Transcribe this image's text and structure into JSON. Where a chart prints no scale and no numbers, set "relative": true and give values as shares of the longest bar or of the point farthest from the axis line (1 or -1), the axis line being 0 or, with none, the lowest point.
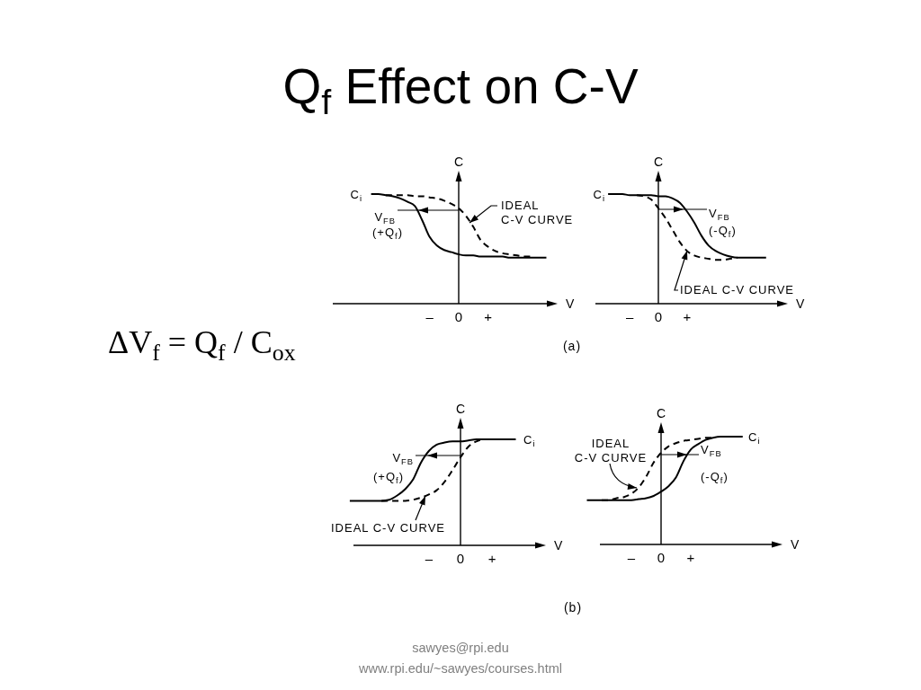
{
  "chart_data": [
    {
      "type": "line",
      "title": "Q$_{f}$ Effect on C-V",
      "xlabel": "V",
      "ylabel": "C",
      "relative": true,
      "categories": [
        null,
        null,
        null,
        null,
        null,
        null,
        null,
        null,
        "–",
        null,
        null,
        null,
        "0",
        null,
        null,
        null,
        "+",
        null,
        null,
        null,
        null,
        null,
        null,
        null,
        null
      ],
      "series": [
        {
          "color": "#000000",
          "values": [
            1,
            1,
            0.99,
            0.98,
            0.96,
            0.93,
            0.89,
            0.76,
            0.61,
            0.53,
            0.49,
            0.47,
            0.45,
            0.44,
            0.44,
            0.43,
            0.43,
            0.43,
            0.43,
            0.42,
            0.42,
            0.42,
            0.42,
            0.42,
            0.42
          ]
        },
        {
          "color": "#000000",
          "line_style": "dashed",
          "values": [
            null,
            null,
            0.99,
            0.99,
            0.99,
            0.99,
            0.98,
            0.98,
            0.97,
            0.96,
            0.94,
            0.91,
            0.87,
            0.8,
            0.7,
            0.58,
            0.52,
            0.48,
            0.46,
            0.45,
            0.44,
            0.43,
            0.43,
            null,
            null
          ]
        }
      ],
      "annotations": [
        "C$_{i}$",
        "V$_{FB}$",
        "(+Q$_{f}$)",
        "IDEAL C-V CURVE",
        "(a)",
        "ΔV$_{f}$ = Q$_{f}$ / C$_{ox}$",
        "sawyes@rpi.edu",
        "www.rpi.edu/~sawyes/courses.html"
      ]
    },
    {
      "type": "line",
      "xlabel": "V",
      "ylabel": "C",
      "relative": true,
      "categories": [
        null,
        null,
        null,
        "–",
        null,
        null,
        null,
        "0",
        null,
        null,
        null,
        "+",
        null,
        null,
        null,
        null,
        null,
        null,
        null,
        null,
        null,
        null,
        null
      ],
      "series": [
        {
          "color": "#000000",
          "values": [
            1,
            1,
            1,
            0.99,
            0.99,
            0.99,
            0.99,
            0.98,
            0.98,
            0.96,
            0.92,
            0.84,
            0.74,
            0.62,
            0.53,
            0.48,
            0.45,
            0.43,
            0.42,
            0.42,
            0.42,
            0.42,
            0.42
          ]
        },
        {
          "color": "#000000",
          "line_style": "dashed",
          "values": [
            null,
            null,
            null,
            null,
            0.99,
            0.98,
            0.95,
            0.87,
            0.78,
            0.67,
            0.56,
            0.48,
            0.44,
            0.42,
            0.41,
            0.4,
            0.4,
            0.41,
            0.42,
            null,
            null,
            null,
            null
          ]
        }
      ],
      "annotations": [
        "C$_{i}$",
        "V$_{FB}$",
        "(-Q$_{f}$)",
        "IDEAL C-V CURVE"
      ]
    },
    {
      "type": "line",
      "xlabel": "V",
      "ylabel": "C",
      "relative": true,
      "categories": [
        null,
        null,
        null,
        null,
        null,
        null,
        null,
        null,
        null,
        null,
        "–",
        null,
        null,
        null,
        "0",
        null,
        null,
        null,
        "+",
        null,
        null,
        null
      ],
      "series": [
        {
          "color": "#000000",
          "values": [
            0.42,
            0.42,
            0.42,
            0.42,
            0.42,
            0.43,
            0.47,
            0.53,
            0.62,
            0.78,
            0.89,
            0.95,
            0.97,
            0.98,
            0.98,
            0.99,
            1,
            1,
            1,
            1,
            1,
            1
          ]
        },
        {
          "color": "#000000",
          "line_style": "dashed",
          "values": [
            null,
            null,
            null,
            null,
            0.42,
            0.42,
            0.42,
            0.42,
            0.43,
            0.45,
            0.48,
            0.52,
            0.6,
            0.71,
            0.83,
            0.93,
            0.98,
            1,
            null,
            null,
            null,
            null
          ]
        }
      ],
      "annotations": [
        "C$_{i}$",
        "V$_{FB}$",
        "(+Q$_{f}$)",
        "IDEAL C-V CURVE",
        "(b)"
      ]
    },
    {
      "type": "line",
      "xlabel": "V",
      "ylabel": "C",
      "relative": true,
      "categories": [
        null,
        null,
        null,
        null,
        null,
        null,
        "–",
        null,
        null,
        null,
        "0",
        null,
        null,
        null,
        "+",
        null,
        null,
        null,
        null,
        null,
        null,
        null
      ],
      "series": [
        {
          "color": "#000000",
          "values": [
            0.41,
            0.41,
            0.41,
            0.41,
            0.41,
            0.41,
            0.41,
            0.42,
            0.43,
            0.45,
            0.49,
            0.54,
            0.62,
            0.77,
            0.88,
            0.93,
            0.97,
            0.99,
            1,
            1,
            1,
            1
          ]
        },
        {
          "color": "#000000",
          "line_style": "dashed",
          "values": [
            null,
            null,
            0.41,
            0.41,
            0.43,
            0.44,
            0.47,
            0.53,
            0.63,
            0.76,
            0.85,
            0.91,
            0.94,
            0.96,
            0.97,
            0.98,
            0.99,
            0.99,
            null,
            null,
            null,
            null
          ]
        }
      ],
      "annotations": [
        "C$_{i}$",
        "V$_{FB}$",
        "(-Q$_{f}$)",
        "IDEAL C-V CURVE"
      ]
    }
  ]
}
